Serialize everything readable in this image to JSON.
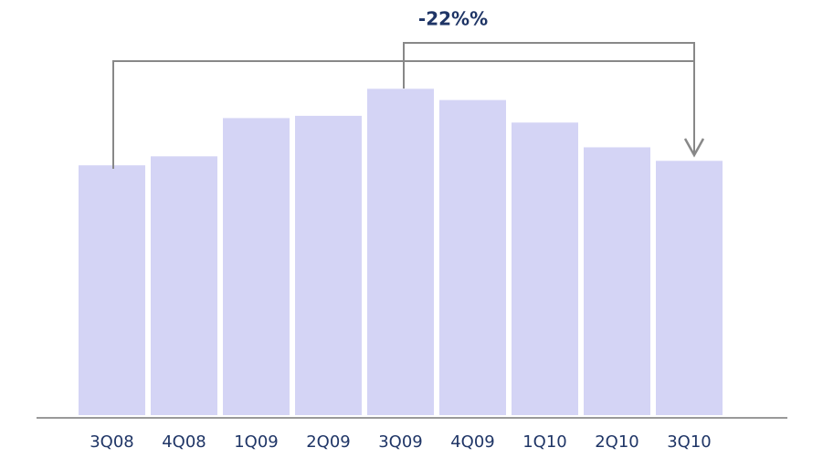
{
  "chart_data": {
    "type": "bar",
    "annotation": "-22%%",
    "categories": [
      "3Q08",
      "4Q08",
      "1Q09",
      "2Q09",
      "3Q09",
      "4Q09",
      "1Q10",
      "2Q10",
      "3Q10"
    ],
    "values": [
      111,
      115,
      132,
      133,
      145,
      140,
      130,
      119,
      113
    ],
    "color": "#d4d4f5",
    "ylim": [
      0,
      180
    ]
  }
}
